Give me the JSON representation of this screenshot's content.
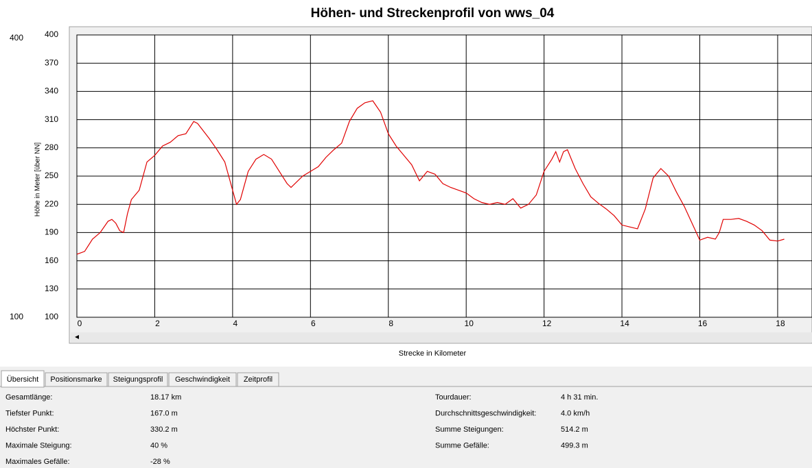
{
  "chart_data": {
    "type": "line",
    "title": "Höhen- und Streckenprofil von wws_04",
    "x_label": "Strecke in Kilometer",
    "y_label": "Höhe in Meter [über NN]",
    "x": [
      0,
      0.2,
      0.4,
      0.6,
      0.8,
      0.9,
      1.0,
      1.1,
      1.2,
      1.3,
      1.4,
      1.6,
      1.8,
      2.0,
      2.2,
      2.4,
      2.6,
      2.8,
      3.0,
      3.1,
      3.4,
      3.6,
      3.8,
      3.9,
      4.0,
      4.1,
      4.2,
      4.4,
      4.6,
      4.8,
      5.0,
      5.2,
      5.4,
      5.5,
      5.8,
      6.0,
      6.2,
      6.4,
      6.6,
      6.8,
      7.0,
      7.2,
      7.4,
      7.6,
      7.8,
      8.0,
      8.2,
      8.4,
      8.6,
      8.8,
      9.0,
      9.2,
      9.4,
      9.6,
      9.8,
      10.0,
      10.2,
      10.4,
      10.6,
      10.8,
      11.0,
      11.2,
      11.4,
      11.6,
      11.8,
      12.0,
      12.2,
      12.3,
      12.4,
      12.5,
      12.6,
      12.8,
      13.0,
      13.2,
      13.4,
      13.6,
      13.8,
      14.0,
      14.2,
      14.4,
      14.6,
      14.8,
      15.0,
      15.2,
      15.4,
      15.6,
      15.8,
      16.0,
      16.2,
      16.4,
      16.5,
      16.6,
      16.8,
      17.0,
      17.2,
      17.4,
      17.6,
      17.8,
      18.0,
      18.17
    ],
    "series": [
      {
        "color": "#e00000",
        "values": [
          167,
          170,
          183,
          190,
          202,
          204,
          200,
          192,
          190,
          210,
          225,
          235,
          265,
          272,
          282,
          286,
          293,
          295,
          308,
          306,
          290,
          278,
          265,
          250,
          235,
          220,
          225,
          255,
          268,
          273,
          268,
          255,
          242,
          238,
          250,
          255,
          260,
          270,
          278,
          285,
          308,
          322,
          328,
          330,
          318,
          295,
          282,
          272,
          262,
          245,
          255,
          252,
          242,
          238,
          235,
          232,
          226,
          222,
          220,
          222,
          220,
          226,
          216,
          220,
          230,
          255,
          268,
          276,
          265,
          276,
          278,
          258,
          242,
          228,
          221,
          215,
          208,
          198,
          196,
          194,
          215,
          248,
          258,
          250,
          233,
          218,
          200,
          182,
          185,
          183,
          190,
          204,
          204,
          205,
          202,
          198,
          192,
          182,
          181,
          183
        ]
      }
    ],
    "xlim": [
      0,
      18.9
    ],
    "ylim": [
      100,
      400
    ],
    "xticks": [
      0,
      2,
      4,
      6,
      8,
      10,
      12,
      14,
      16,
      18
    ],
    "yticks": [
      100,
      130,
      160,
      190,
      220,
      250,
      280,
      310,
      340,
      370,
      400
    ],
    "grid": true
  },
  "scale_inputs": {
    "max": "400",
    "min": "100"
  },
  "tabs": [
    "Übersicht",
    "Positionsmarke",
    "Steigungsprofil",
    "Geschwindigkeit",
    "Zeitprofil"
  ],
  "stats_left": [
    [
      "Gesamtlänge:",
      "18.17 km"
    ],
    [
      "Tiefster Punkt:",
      "167.0 m"
    ],
    [
      "Höchster Punkt:",
      "330.2 m"
    ],
    [
      "Maximale Steigung:",
      "40 %"
    ],
    [
      "Maximales Gefälle:",
      "-28 %"
    ]
  ],
  "stats_right": [
    [
      "Tourdauer:",
      "4 h 31 min."
    ],
    [
      "Durchschnittsgeschwindigkeit:",
      "4.0 km/h"
    ],
    [
      "Summe Steigungen:",
      "514.2 m"
    ],
    [
      "Summe Gefälle:",
      "499.3 m"
    ]
  ]
}
